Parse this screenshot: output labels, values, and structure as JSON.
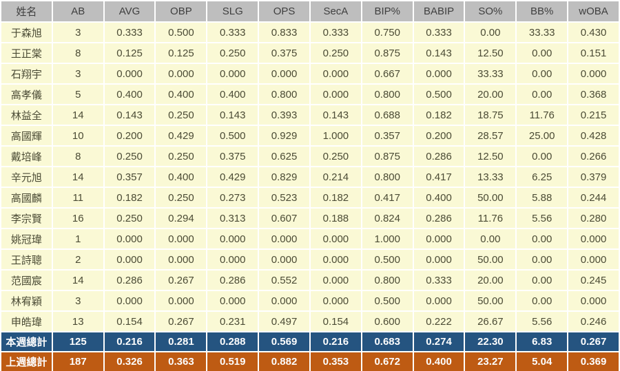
{
  "colors": {
    "header_bg": "#BEBEBE",
    "header_text": "#3F3F3F",
    "row_bg": "#FAF9D5",
    "row_text": "#4B4B35",
    "grid": "#FFFFFF",
    "this_week_bg": "#255480",
    "last_week_bg": "#BE5B13",
    "total_text": "#FDFDFD"
  },
  "chart_data": {
    "type": "table",
    "columns": [
      "姓名",
      "AB",
      "AVG",
      "OBP",
      "SLG",
      "OPS",
      "SecA",
      "BIP%",
      "BABIP",
      "SO%",
      "BB%",
      "wOBA"
    ],
    "rows": [
      [
        "于森旭",
        "3",
        "0.333",
        "0.500",
        "0.333",
        "0.833",
        "0.333",
        "0.750",
        "0.333",
        "0.00",
        "33.33",
        "0.430"
      ],
      [
        "王正棠",
        "8",
        "0.125",
        "0.125",
        "0.250",
        "0.375",
        "0.250",
        "0.875",
        "0.143",
        "12.50",
        "0.00",
        "0.151"
      ],
      [
        "石翔宇",
        "3",
        "0.000",
        "0.000",
        "0.000",
        "0.000",
        "0.000",
        "0.667",
        "0.000",
        "33.33",
        "0.00",
        "0.000"
      ],
      [
        "高孝儀",
        "5",
        "0.400",
        "0.400",
        "0.400",
        "0.800",
        "0.000",
        "0.800",
        "0.500",
        "20.00",
        "0.00",
        "0.368"
      ],
      [
        "林益全",
        "14",
        "0.143",
        "0.250",
        "0.143",
        "0.393",
        "0.143",
        "0.688",
        "0.182",
        "18.75",
        "11.76",
        "0.215"
      ],
      [
        "高國輝",
        "10",
        "0.200",
        "0.429",
        "0.500",
        "0.929",
        "1.000",
        "0.357",
        "0.200",
        "28.57",
        "25.00",
        "0.428"
      ],
      [
        "戴培峰",
        "8",
        "0.250",
        "0.250",
        "0.375",
        "0.625",
        "0.250",
        "0.875",
        "0.286",
        "12.50",
        "0.00",
        "0.266"
      ],
      [
        "辛元旭",
        "14",
        "0.357",
        "0.400",
        "0.429",
        "0.829",
        "0.214",
        "0.800",
        "0.417",
        "13.33",
        "6.25",
        "0.379"
      ],
      [
        "高國麟",
        "11",
        "0.182",
        "0.250",
        "0.273",
        "0.523",
        "0.182",
        "0.417",
        "0.400",
        "50.00",
        "5.88",
        "0.244"
      ],
      [
        "李宗賢",
        "16",
        "0.250",
        "0.294",
        "0.313",
        "0.607",
        "0.188",
        "0.824",
        "0.286",
        "11.76",
        "5.56",
        "0.280"
      ],
      [
        "姚冠瑋",
        "1",
        "0.000",
        "0.000",
        "0.000",
        "0.000",
        "0.000",
        "1.000",
        "0.000",
        "0.00",
        "0.00",
        "0.000"
      ],
      [
        "王詩聰",
        "2",
        "0.000",
        "0.000",
        "0.000",
        "0.000",
        "0.000",
        "0.500",
        "0.000",
        "50.00",
        "0.00",
        "0.000"
      ],
      [
        "范國宸",
        "14",
        "0.286",
        "0.267",
        "0.286",
        "0.552",
        "0.000",
        "0.800",
        "0.333",
        "20.00",
        "0.00",
        "0.245"
      ],
      [
        "林宥穎",
        "3",
        "0.000",
        "0.000",
        "0.000",
        "0.000",
        "0.000",
        "0.500",
        "0.000",
        "50.00",
        "0.00",
        "0.000"
      ],
      [
        "申皓瑋",
        "13",
        "0.154",
        "0.267",
        "0.231",
        "0.497",
        "0.154",
        "0.600",
        "0.222",
        "26.67",
        "5.56",
        "0.246"
      ]
    ],
    "totals": [
      {
        "label": "本週總計",
        "style": "this-week",
        "values": [
          "125",
          "0.216",
          "0.281",
          "0.288",
          "0.569",
          "0.216",
          "0.683",
          "0.274",
          "22.30",
          "6.83",
          "0.267"
        ]
      },
      {
        "label": "上週總計",
        "style": "last-week",
        "values": [
          "187",
          "0.326",
          "0.363",
          "0.519",
          "0.882",
          "0.353",
          "0.672",
          "0.400",
          "23.27",
          "5.04",
          "0.369"
        ]
      }
    ]
  }
}
